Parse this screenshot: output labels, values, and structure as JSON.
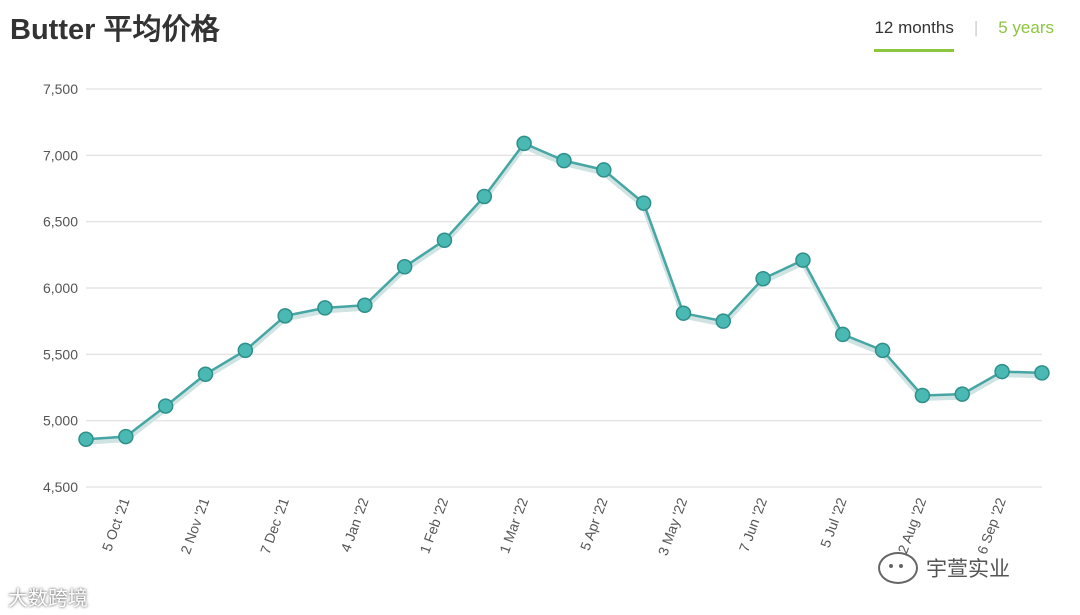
{
  "header": {
    "title": "Butter 平均价格",
    "tabs": [
      {
        "label": "12 months",
        "active": true
      },
      {
        "label": "5 years",
        "active": false
      }
    ]
  },
  "watermarks": {
    "left": "大数跨境",
    "right": "宇萱实业"
  },
  "colors": {
    "line": "#46a6a4",
    "marker_fill": "#4ab8b3",
    "marker_stroke": "#2f8f8b",
    "accent": "#8cc63f",
    "grid": "#e5e5e5"
  },
  "chart_data": {
    "type": "line",
    "title": "Butter 平均价格",
    "xlabel": "",
    "ylabel": "",
    "ylim": [
      4500,
      7500
    ],
    "yticks": [
      "4,500",
      "5,000",
      "5,500",
      "6,000",
      "6,500",
      "7,000",
      "7,500"
    ],
    "ytick_values": [
      4500,
      5000,
      5500,
      6000,
      6500,
      7000,
      7500
    ],
    "x_tick_labels": [
      "5 Oct '21",
      "2 Nov '21",
      "7 Dec '21",
      "4 Jan '22",
      "1 Feb '22",
      "1 Mar '22",
      "5 Apr '22",
      "3 May '22",
      "7 Jun '22",
      "5 Jul '22",
      "2 Aug '22",
      "6 Sep '22"
    ],
    "x_tick_indices": [
      1,
      3,
      5,
      7,
      9,
      11,
      13,
      15,
      17,
      19,
      21,
      23
    ],
    "grid": true,
    "legend": "none",
    "series": [
      {
        "values": [
          4860,
          4880,
          5110,
          5350,
          5530,
          5790,
          5850,
          5870,
          6160,
          6360,
          6690,
          7090,
          6960,
          6890,
          6640,
          5810,
          5750,
          6070,
          6210,
          5650,
          5530,
          5190,
          5200,
          5370,
          5360
        ]
      }
    ]
  }
}
